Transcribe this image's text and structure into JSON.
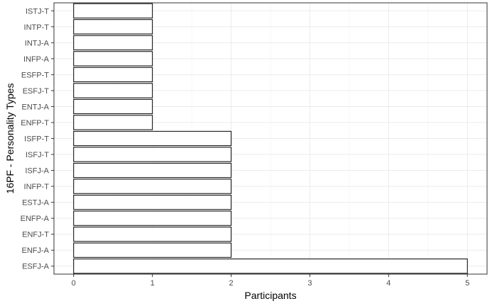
{
  "chart_data": {
    "type": "bar",
    "orientation": "horizontal",
    "categories": [
      "ESFJ-A",
      "ENFJ-A",
      "ENFJ-T",
      "ENFP-A",
      "ESTJ-A",
      "INFP-T",
      "ISFJ-A",
      "ISFJ-T",
      "ISFP-T",
      "ENFP-T",
      "ENTJ-A",
      "ESFJ-T",
      "ESFP-T",
      "INFP-A",
      "INTJ-A",
      "INTP-T",
      "ISTJ-T"
    ],
    "values": [
      5,
      2,
      2,
      2,
      2,
      2,
      2,
      2,
      2,
      1,
      1,
      1,
      1,
      1,
      1,
      1,
      1
    ],
    "xlabel": "Participants",
    "ylabel": "16PF - Personality Types",
    "xlim": [
      0,
      5
    ],
    "xticks": [
      0,
      1,
      2,
      3,
      4,
      5
    ],
    "grid": true,
    "bar_fill": "#ffffff",
    "bar_stroke": "#000000"
  }
}
